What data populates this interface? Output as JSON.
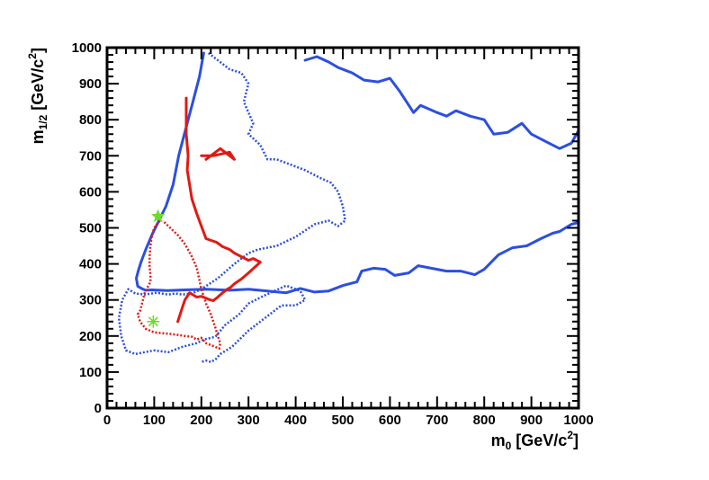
{
  "chart_data": {
    "type": "line",
    "xlabel": {
      "base": "m",
      "sub": "0",
      "rest": " [GeV/c",
      "sup": "2",
      "tail": "]"
    },
    "ylabel": {
      "base": "m",
      "sub": "1/2",
      "rest": " [GeV/c",
      "sup": "2",
      "tail": "]"
    },
    "xlim": [
      0,
      1000
    ],
    "ylim": [
      0,
      1000
    ],
    "x_ticks": [
      "0",
      "100",
      "200",
      "300",
      "400",
      "500",
      "600",
      "700",
      "800",
      "900",
      "1000"
    ],
    "y_ticks": [
      "0",
      "100",
      "200",
      "300",
      "400",
      "500",
      "600",
      "700",
      "800",
      "900",
      "1000"
    ],
    "grid": false,
    "legend": "none",
    "colors": {
      "blue": "#2b4fe0",
      "red": "#e01a12",
      "green": "#6bdc2a"
    },
    "series": [
      {
        "style": "solid",
        "color": "blue",
        "x": [
          205,
          196,
          182,
          168,
          152,
          140,
          125,
          110,
          95,
          82,
          72,
          66,
          62,
          65,
          76,
          82,
          95,
          128,
          165,
          210,
          260,
          300,
          340,
          380,
          410,
          440,
          470,
          500,
          530,
          540,
          565,
          590,
          610,
          640,
          660,
          700,
          720,
          750,
          780,
          800,
          830,
          860,
          890,
          920,
          945,
          960,
          985,
          1000
        ],
        "y": [
          985,
          920,
          850,
          780,
          700,
          620,
          560,
          520,
          480,
          440,
          405,
          380,
          360,
          338,
          330,
          327,
          328,
          326,
          328,
          330,
          327,
          330,
          325,
          320,
          332,
          322,
          325,
          340,
          350,
          380,
          388,
          385,
          368,
          375,
          395,
          385,
          380,
          380,
          370,
          385,
          425,
          445,
          450,
          470,
          485,
          490,
          510,
          515
        ]
      },
      {
        "style": "solid",
        "color": "blue",
        "x": [
          420,
          445,
          470,
          490,
          520,
          545,
          575,
          600,
          620,
          650,
          665,
          700,
          720,
          740,
          770,
          800,
          820,
          850,
          880,
          900,
          930,
          960,
          985,
          1000
        ],
        "y": [
          965,
          975,
          960,
          945,
          930,
          910,
          905,
          915,
          880,
          820,
          840,
          820,
          810,
          825,
          810,
          800,
          760,
          765,
          790,
          760,
          740,
          720,
          735,
          770
        ]
      },
      {
        "style": "dotted",
        "color": "blue",
        "x": [
          215,
          235,
          260,
          285,
          300,
          290,
          310,
          300,
          325,
          340,
          360,
          390,
          420,
          450,
          475,
          490,
          500,
          505,
          490,
          470,
          440,
          400,
          360,
          320,
          300,
          270,
          235,
          200,
          180,
          160,
          145,
          130,
          105,
          80,
          60,
          45,
          32,
          25,
          30,
          40,
          60,
          80,
          100,
          130,
          160,
          190,
          205,
          230,
          250,
          280,
          300,
          330,
          380,
          410,
          420,
          400,
          370,
          330,
          300,
          265,
          240,
          230,
          220,
          210,
          200
        ],
        "y": [
          985,
          965,
          940,
          930,
          900,
          850,
          790,
          760,
          730,
          690,
          690,
          675,
          660,
          640,
          625,
          600,
          560,
          520,
          505,
          520,
          510,
          475,
          450,
          440,
          430,
          400,
          360,
          330,
          318,
          315,
          318,
          315,
          320,
          315,
          318,
          330,
          300,
          250,
          200,
          160,
          150,
          155,
          160,
          155,
          170,
          180,
          190,
          198,
          230,
          260,
          290,
          310,
          340,
          325,
          300,
          285,
          285,
          245,
          215,
          170,
          150,
          135,
          128,
          132,
          128
        ]
      },
      {
        "style": "solid",
        "color": "red",
        "x": [
          168,
          168,
          168,
          172,
          170,
          175,
          180,
          190,
          200,
          210,
          232,
          245,
          260,
          270,
          285,
          300,
          310,
          325,
          300,
          285,
          270,
          262,
          255,
          245,
          232,
          225,
          215,
          200,
          190,
          175,
          165,
          160,
          155,
          150
        ],
        "y": [
          860,
          820,
          760,
          700,
          660,
          620,
          580,
          540,
          505,
          470,
          460,
          448,
          440,
          430,
          420,
          410,
          415,
          405,
          375,
          358,
          345,
          335,
          330,
          320,
          305,
          298,
          302,
          310,
          308,
          320,
          300,
          280,
          260,
          240
        ]
      },
      {
        "style": "solid",
        "color": "red",
        "x": [
          200,
          225,
          260,
          270,
          240,
          210
        ],
        "y": [
          700,
          700,
          710,
          690,
          720,
          690
        ]
      },
      {
        "style": "dotted",
        "color": "red",
        "x": [
          112,
          100,
          95,
          92,
          90,
          90,
          92,
          92,
          80,
          70,
          65,
          70,
          82,
          100,
          140,
          165,
          180,
          190,
          200,
          210,
          220,
          238,
          240,
          235,
          228,
          220,
          210,
          200,
          190,
          180,
          165,
          150,
          130,
          118
        ],
        "y": [
          520,
          500,
          480,
          450,
          420,
          395,
          370,
          350,
          320,
          270,
          260,
          240,
          220,
          210,
          205,
          200,
          198,
          190,
          195,
          180,
          175,
          165,
          180,
          200,
          230,
          260,
          290,
          330,
          390,
          420,
          455,
          480,
          505,
          520
        ]
      }
    ],
    "markers": [
      {
        "x": 108,
        "y": 532,
        "color": "green",
        "shape": "star-filled"
      },
      {
        "x": 98,
        "y": 240,
        "color": "green",
        "shape": "asterisk"
      }
    ]
  }
}
